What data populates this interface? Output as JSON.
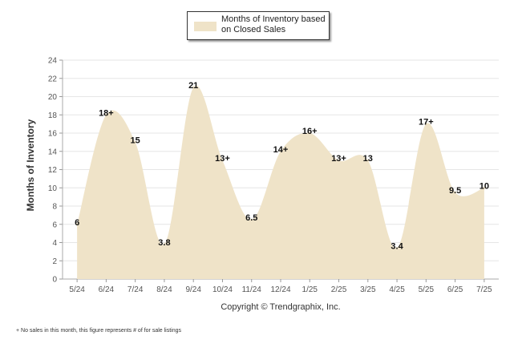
{
  "chart_data": {
    "type": "area",
    "categories": [
      "5/24",
      "6/24",
      "7/24",
      "8/24",
      "9/24",
      "10/24",
      "11/24",
      "12/24",
      "1/25",
      "2/25",
      "3/25",
      "4/25",
      "5/25",
      "6/25",
      "7/25"
    ],
    "series": [
      {
        "name": "Months of Inventory based on Closed Sales",
        "values": [
          6,
          18,
          15,
          3.8,
          21,
          13,
          6.5,
          14,
          16,
          13,
          13,
          3.4,
          17,
          9.5,
          10
        ],
        "labels": [
          "6",
          "18+",
          "15",
          "3.8",
          "21",
          "13+",
          "6.5",
          "14+",
          "16+",
          "13+",
          "13",
          "3.4",
          "17+",
          "9.5",
          "10"
        ],
        "color": "#efe3c8"
      }
    ],
    "ylabel": "Months of Inventory",
    "ylim": [
      0,
      24
    ],
    "yticks": [
      0,
      2,
      4,
      6,
      8,
      10,
      12,
      14,
      16,
      18,
      20,
      22,
      24
    ],
    "grid": true,
    "legend": "top-center"
  },
  "copyright": "Copyright © Trendgraphix, Inc.",
  "footnote": "+  No sales in this month, this figure represents # of for sale listings"
}
